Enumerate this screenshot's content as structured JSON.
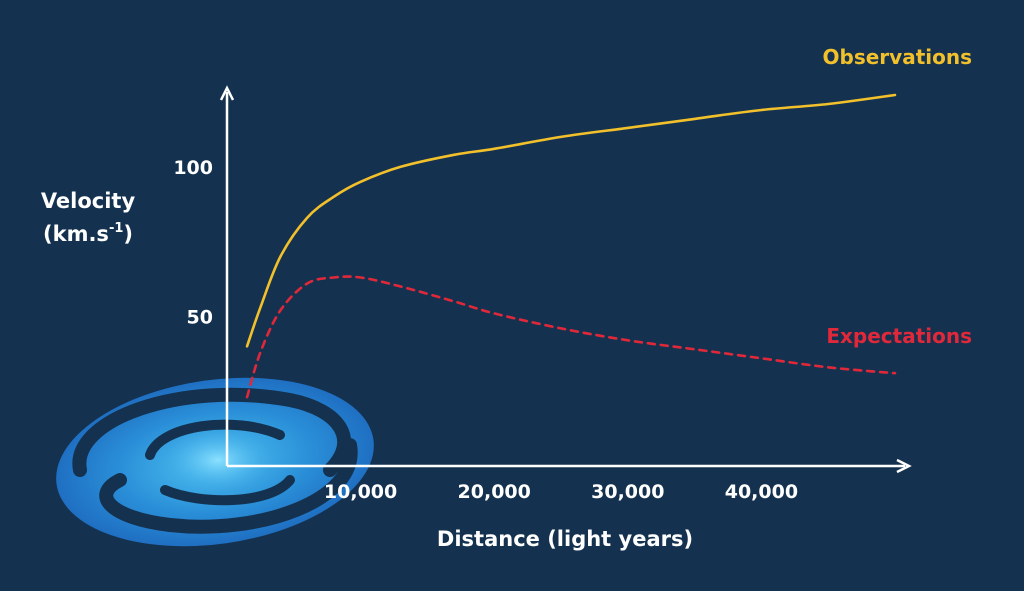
{
  "chart_data": {
    "type": "line",
    "xlabel": "Distance (light years)",
    "ylabel_line1": "Velocity",
    "ylabel_line2_base": "(km.s",
    "ylabel_line2_sup": "-1",
    "ylabel_line2_end": ")",
    "x_ticks": [
      {
        "value": 10000,
        "label": "10,000"
      },
      {
        "value": 20000,
        "label": "20,000"
      },
      {
        "value": 30000,
        "label": "30,000"
      },
      {
        "value": 40000,
        "label": "40,000"
      }
    ],
    "y_ticks": [
      {
        "value": 50,
        "label": "50"
      },
      {
        "value": 100,
        "label": "100"
      }
    ],
    "xlim": [
      0,
      50000
    ],
    "ylim": [
      0,
      125
    ],
    "series": [
      {
        "name": "Observations",
        "color": "#f2c02b",
        "style": "solid",
        "points": [
          [
            1500,
            40
          ],
          [
            2500,
            53
          ],
          [
            4000,
            70
          ],
          [
            6000,
            83
          ],
          [
            8000,
            90
          ],
          [
            10000,
            95
          ],
          [
            13000,
            100
          ],
          [
            17000,
            104
          ],
          [
            20000,
            106
          ],
          [
            25000,
            110
          ],
          [
            30000,
            113
          ],
          [
            35000,
            116
          ],
          [
            40000,
            119
          ],
          [
            45000,
            121
          ],
          [
            50000,
            124
          ]
        ]
      },
      {
        "name": "Expectations",
        "color": "#e0283a",
        "style": "dashed",
        "points": [
          [
            1500,
            23
          ],
          [
            2500,
            38
          ],
          [
            4000,
            52
          ],
          [
            6000,
            61
          ],
          [
            8000,
            63
          ],
          [
            10000,
            63
          ],
          [
            13000,
            60
          ],
          [
            17000,
            55
          ],
          [
            20000,
            51
          ],
          [
            25000,
            46
          ],
          [
            30000,
            42
          ],
          [
            35000,
            39
          ],
          [
            40000,
            36
          ],
          [
            45000,
            33
          ],
          [
            50000,
            31
          ]
        ]
      }
    ]
  }
}
